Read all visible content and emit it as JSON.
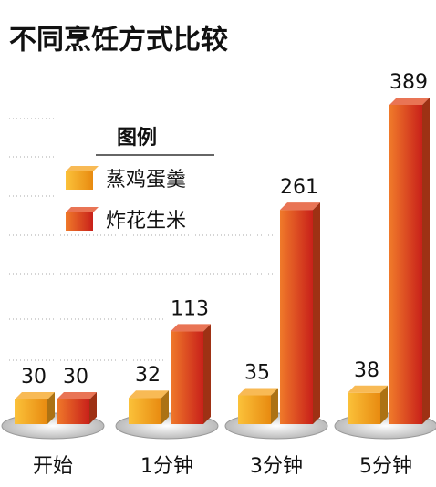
{
  "chart_data": {
    "type": "bar",
    "title": "不同烹饪方式比较",
    "legend_title": "图例",
    "categories": [
      "开始",
      "1分钟",
      "3分钟",
      "5分钟"
    ],
    "series": [
      {
        "name": "蒸鸡蛋羹",
        "color": "#f5a31c",
        "values": [
          30,
          32,
          35,
          38
        ]
      },
      {
        "name": "炸花生米",
        "color": "#e2461c",
        "values": [
          30,
          113,
          261,
          389
        ]
      }
    ]
  }
}
